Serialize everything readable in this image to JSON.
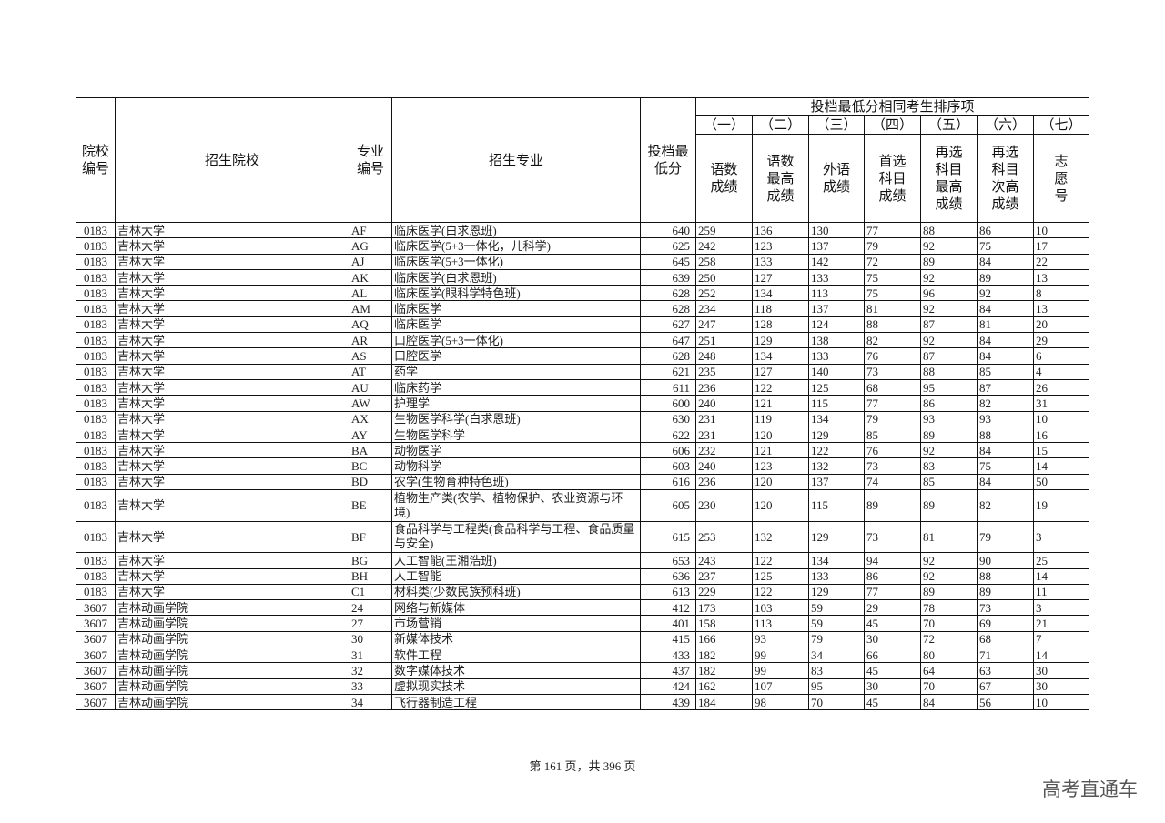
{
  "header": {
    "school_code": "院校编号",
    "school": "招生院校",
    "major_code": "专业编号",
    "major": "招生专业",
    "min_score": "投档最低分",
    "tiebreak_title": "投档最低分相同考生排序项",
    "tiebreak_orders": [
      "（一）",
      "（二）",
      "（三）",
      "（四）",
      "（五）",
      "（六）",
      "（七）"
    ],
    "tiebreak_items": [
      "语数成绩",
      "语数最高成绩",
      "外语成绩",
      "首选科目成绩",
      "再选科目最高成绩",
      "再选科目次高成绩",
      "志愿号"
    ]
  },
  "rows": [
    [
      "0183",
      "吉林大学",
      "AF",
      "临床医学(白求恩班)",
      "640",
      "259",
      "136",
      "130",
      "77",
      "88",
      "86",
      "10"
    ],
    [
      "0183",
      "吉林大学",
      "AG",
      "临床医学(5+3一体化，儿科学)",
      "625",
      "242",
      "123",
      "137",
      "79",
      "92",
      "75",
      "17"
    ],
    [
      "0183",
      "吉林大学",
      "AJ",
      "临床医学(5+3一体化)",
      "645",
      "258",
      "133",
      "142",
      "72",
      "89",
      "84",
      "22"
    ],
    [
      "0183",
      "吉林大学",
      "AK",
      "临床医学(白求恩班)",
      "639",
      "250",
      "127",
      "133",
      "75",
      "92",
      "89",
      "13"
    ],
    [
      "0183",
      "吉林大学",
      "AL",
      "临床医学(眼科学特色班)",
      "628",
      "252",
      "134",
      "113",
      "75",
      "96",
      "92",
      "8"
    ],
    [
      "0183",
      "吉林大学",
      "AM",
      "临床医学",
      "628",
      "234",
      "118",
      "137",
      "81",
      "92",
      "84",
      "13"
    ],
    [
      "0183",
      "吉林大学",
      "AQ",
      "临床医学",
      "627",
      "247",
      "128",
      "124",
      "88",
      "87",
      "81",
      "20"
    ],
    [
      "0183",
      "吉林大学",
      "AR",
      "口腔医学(5+3一体化)",
      "647",
      "251",
      "129",
      "138",
      "82",
      "92",
      "84",
      "29"
    ],
    [
      "0183",
      "吉林大学",
      "AS",
      "口腔医学",
      "628",
      "248",
      "134",
      "133",
      "76",
      "87",
      "84",
      "6"
    ],
    [
      "0183",
      "吉林大学",
      "AT",
      "药学",
      "621",
      "235",
      "127",
      "140",
      "73",
      "88",
      "85",
      "4"
    ],
    [
      "0183",
      "吉林大学",
      "AU",
      "临床药学",
      "611",
      "236",
      "122",
      "125",
      "68",
      "95",
      "87",
      "26"
    ],
    [
      "0183",
      "吉林大学",
      "AW",
      "护理学",
      "600",
      "240",
      "121",
      "115",
      "77",
      "86",
      "82",
      "31"
    ],
    [
      "0183",
      "吉林大学",
      "AX",
      "生物医学科学(白求恩班)",
      "630",
      "231",
      "119",
      "134",
      "79",
      "93",
      "93",
      "10"
    ],
    [
      "0183",
      "吉林大学",
      "AY",
      "生物医学科学",
      "622",
      "231",
      "120",
      "129",
      "85",
      "89",
      "88",
      "16"
    ],
    [
      "0183",
      "吉林大学",
      "BA",
      "动物医学",
      "606",
      "232",
      "121",
      "122",
      "76",
      "92",
      "84",
      "15"
    ],
    [
      "0183",
      "吉林大学",
      "BC",
      "动物科学",
      "603",
      "240",
      "123",
      "132",
      "73",
      "83",
      "75",
      "14"
    ],
    [
      "0183",
      "吉林大学",
      "BD",
      "农学(生物育种特色班)",
      "616",
      "236",
      "120",
      "137",
      "74",
      "85",
      "84",
      "50"
    ],
    [
      "0183",
      "吉林大学",
      "BE",
      "植物生产类(农学、植物保护、农业资源与环境)",
      "605",
      "230",
      "120",
      "115",
      "89",
      "89",
      "82",
      "19"
    ],
    [
      "0183",
      "吉林大学",
      "BF",
      "食品科学与工程类(食品科学与工程、食品质量与安全)",
      "615",
      "253",
      "132",
      "129",
      "73",
      "81",
      "79",
      "3"
    ],
    [
      "0183",
      "吉林大学",
      "BG",
      "人工智能(王湘浩班)",
      "653",
      "243",
      "122",
      "134",
      "94",
      "92",
      "90",
      "25"
    ],
    [
      "0183",
      "吉林大学",
      "BH",
      "人工智能",
      "636",
      "237",
      "125",
      "133",
      "86",
      "92",
      "88",
      "14"
    ],
    [
      "0183",
      "吉林大学",
      "C1",
      "材料类(少数民族预科班)",
      "613",
      "229",
      "122",
      "129",
      "77",
      "89",
      "89",
      "11"
    ],
    [
      "3607",
      "吉林动画学院",
      "24",
      "网络与新媒体",
      "412",
      "173",
      "103",
      "59",
      "29",
      "78",
      "73",
      "3"
    ],
    [
      "3607",
      "吉林动画学院",
      "27",
      "市场营销",
      "401",
      "158",
      "113",
      "59",
      "45",
      "70",
      "69",
      "21"
    ],
    [
      "3607",
      "吉林动画学院",
      "30",
      "新媒体技术",
      "415",
      "166",
      "93",
      "79",
      "30",
      "72",
      "68",
      "7"
    ],
    [
      "3607",
      "吉林动画学院",
      "31",
      "软件工程",
      "433",
      "182",
      "99",
      "34",
      "66",
      "80",
      "71",
      "14"
    ],
    [
      "3607",
      "吉林动画学院",
      "32",
      "数字媒体技术",
      "437",
      "182",
      "99",
      "83",
      "45",
      "64",
      "63",
      "30"
    ],
    [
      "3607",
      "吉林动画学院",
      "33",
      "虚拟现实技术",
      "424",
      "162",
      "107",
      "95",
      "30",
      "70",
      "67",
      "30"
    ],
    [
      "3607",
      "吉林动画学院",
      "34",
      "飞行器制造工程",
      "439",
      "184",
      "98",
      "70",
      "45",
      "84",
      "56",
      "10"
    ]
  ],
  "footer": "第 161 页，共 396 页",
  "watermark": "高考直通车"
}
